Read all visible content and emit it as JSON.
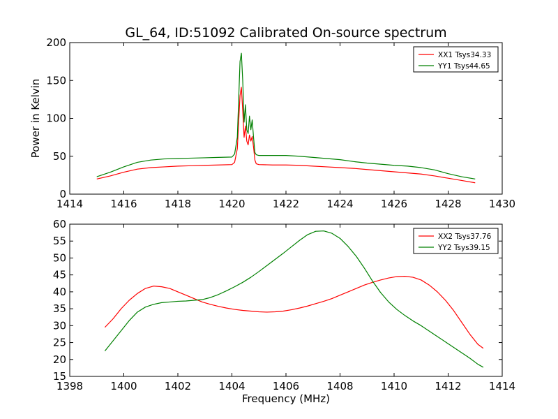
{
  "figure": {
    "title": "GL_64, ID:51092 Calibrated On-source spectrum"
  },
  "chart_data": [
    {
      "type": "line",
      "title": "GL_64, ID:51092 Calibrated On-source spectrum",
      "xlabel": "",
      "ylabel": "Power in Kelvin",
      "xlim": [
        1414,
        1430
      ],
      "ylim": [
        0,
        200
      ],
      "xticks": [
        1414,
        1416,
        1418,
        1420,
        1422,
        1424,
        1426,
        1428,
        1430
      ],
      "yticks": [
        0,
        50,
        100,
        150,
        200
      ],
      "legend_position": "top-right",
      "grid": false,
      "series": [
        {
          "name": "XX1 Tsys34.33",
          "color": "#ff0000",
          "x": [
            1415.0,
            1415.5,
            1416.0,
            1416.5,
            1417.0,
            1417.5,
            1418.0,
            1418.5,
            1419.0,
            1419.5,
            1420.0,
            1420.1,
            1420.2,
            1420.3,
            1420.35,
            1420.4,
            1420.45,
            1420.5,
            1420.55,
            1420.6,
            1420.65,
            1420.7,
            1420.75,
            1420.8,
            1420.85,
            1420.9,
            1421.0,
            1421.5,
            1422.0,
            1422.5,
            1423.0,
            1423.5,
            1424.0,
            1424.5,
            1425.0,
            1425.5,
            1426.0,
            1426.5,
            1427.0,
            1427.5,
            1428.0,
            1428.5,
            1429.0
          ],
          "values": [
            20,
            24,
            29,
            33,
            35,
            36,
            37,
            37.5,
            38,
            38.5,
            39,
            42,
            60,
            130,
            141,
            110,
            75,
            90,
            70,
            65,
            78,
            70,
            76,
            62,
            45,
            40,
            39,
            38.5,
            38.5,
            38,
            37,
            36,
            35,
            34,
            32.5,
            31,
            29.5,
            28,
            26.5,
            24,
            21,
            18,
            15
          ]
        },
        {
          "name": "YY1 Tsys44.65",
          "color": "#008000",
          "x": [
            1415.0,
            1415.5,
            1416.0,
            1416.5,
            1417.0,
            1417.5,
            1418.0,
            1418.5,
            1419.0,
            1419.5,
            1420.0,
            1420.1,
            1420.2,
            1420.3,
            1420.35,
            1420.4,
            1420.45,
            1420.5,
            1420.55,
            1420.6,
            1420.65,
            1420.7,
            1420.75,
            1420.8,
            1420.85,
            1420.9,
            1421.0,
            1421.5,
            1422.0,
            1422.5,
            1423.0,
            1423.5,
            1424.0,
            1424.5,
            1425.0,
            1425.5,
            1426.0,
            1426.5,
            1427.0,
            1427.5,
            1428.0,
            1428.5,
            1429.0
          ],
          "values": [
            23,
            29,
            36,
            42,
            45,
            46.5,
            47,
            47.5,
            48,
            48.5,
            49,
            53,
            75,
            175,
            186,
            150,
            95,
            118,
            85,
            80,
            103,
            85,
            98,
            75,
            55,
            52,
            51,
            51,
            51,
            50,
            48.5,
            47,
            45.5,
            43,
            41,
            39.5,
            38,
            37,
            35,
            32,
            27,
            23,
            20
          ]
        }
      ]
    },
    {
      "type": "line",
      "xlabel": "Frequency (MHz)",
      "ylabel": "",
      "xlim": [
        1398,
        1414
      ],
      "ylim": [
        15,
        60
      ],
      "xticks": [
        1398,
        1400,
        1402,
        1404,
        1406,
        1408,
        1410,
        1412,
        1414
      ],
      "yticks": [
        15,
        20,
        25,
        30,
        35,
        40,
        45,
        50,
        55,
        60
      ],
      "legend_position": "top-right",
      "grid": false,
      "series": [
        {
          "name": "XX2 Tsys37.76",
          "color": "#ff0000",
          "x": [
            1399.3,
            1399.6,
            1399.9,
            1400.2,
            1400.5,
            1400.8,
            1401.1,
            1401.4,
            1401.7,
            1402.0,
            1402.3,
            1402.6,
            1402.9,
            1403.2,
            1403.5,
            1403.8,
            1404.1,
            1404.4,
            1404.7,
            1405.0,
            1405.3,
            1405.6,
            1405.9,
            1406.2,
            1406.5,
            1406.8,
            1407.1,
            1407.4,
            1407.7,
            1408.0,
            1408.3,
            1408.6,
            1408.9,
            1409.2,
            1409.5,
            1409.8,
            1410.1,
            1410.4,
            1410.7,
            1411.0,
            1411.3,
            1411.6,
            1411.9,
            1412.2,
            1412.5,
            1412.8,
            1413.1,
            1413.3
          ],
          "values": [
            29.5,
            32,
            35,
            37.5,
            39.5,
            41,
            41.7,
            41.5,
            41,
            40,
            39,
            38,
            37,
            36.3,
            35.7,
            35.2,
            34.8,
            34.5,
            34.3,
            34.1,
            34.0,
            34.1,
            34.3,
            34.7,
            35.2,
            35.8,
            36.5,
            37.2,
            38,
            39,
            40,
            41,
            42,
            42.8,
            43.5,
            44.1,
            44.5,
            44.6,
            44.3,
            43.5,
            42,
            40,
            37.5,
            34.5,
            31,
            27.5,
            24.5,
            23.3
          ]
        },
        {
          "name": "YY2 Tsys39.15",
          "color": "#008000",
          "x": [
            1399.3,
            1399.6,
            1399.9,
            1400.2,
            1400.5,
            1400.8,
            1401.1,
            1401.4,
            1401.7,
            1402.0,
            1402.3,
            1402.6,
            1402.9,
            1403.2,
            1403.5,
            1403.8,
            1404.1,
            1404.4,
            1404.7,
            1405.0,
            1405.3,
            1405.6,
            1405.9,
            1406.2,
            1406.5,
            1406.8,
            1407.1,
            1407.4,
            1407.7,
            1408.0,
            1408.3,
            1408.6,
            1408.9,
            1409.2,
            1409.5,
            1409.8,
            1410.1,
            1410.4,
            1410.7,
            1411.0,
            1411.3,
            1411.6,
            1411.9,
            1412.2,
            1412.5,
            1412.8,
            1413.1,
            1413.3
          ],
          "values": [
            22.5,
            25.5,
            28.5,
            31.5,
            34,
            35.5,
            36.3,
            36.8,
            37,
            37.2,
            37.3,
            37.5,
            37.7,
            38.3,
            39.2,
            40.3,
            41.5,
            42.8,
            44.3,
            46,
            47.8,
            49.6,
            51.4,
            53.3,
            55.2,
            56.9,
            57.9,
            58.0,
            57.3,
            55.8,
            53.4,
            50.5,
            47,
            43.2,
            39.8,
            37,
            34.8,
            33,
            31.4,
            30,
            28.4,
            26.8,
            25.2,
            23.6,
            22,
            20.4,
            18.6,
            17.7
          ]
        }
      ]
    }
  ]
}
